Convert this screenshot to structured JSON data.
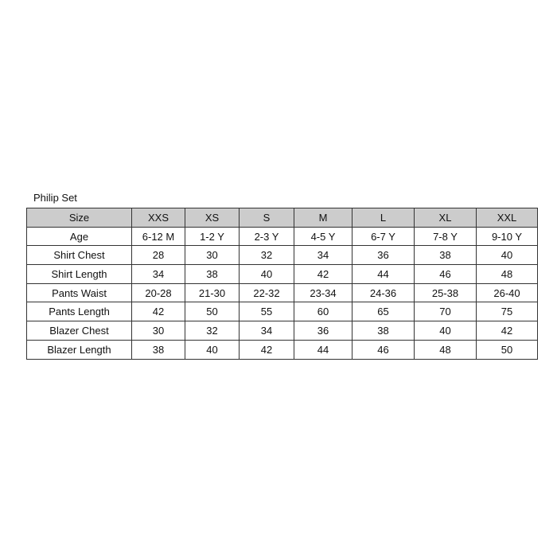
{
  "title": "Philip Set",
  "header": [
    "Size",
    "XXS",
    "XS",
    "S",
    "M",
    "L",
    "XL",
    "XXL"
  ],
  "rows": [
    [
      "Age",
      "6-12 M",
      "1-2 Y",
      "2-3 Y",
      "4-5 Y",
      "6-7 Y",
      "7-8 Y",
      "9-10 Y"
    ],
    [
      "Shirt Chest",
      "28",
      "30",
      "32",
      "34",
      "36",
      "38",
      "40"
    ],
    [
      "Shirt Length",
      "34",
      "38",
      "40",
      "42",
      "44",
      "46",
      "48"
    ],
    [
      "Pants Waist",
      "20-28",
      "21-30",
      "22-32",
      "23-34",
      "24-36",
      "25-38",
      "26-40"
    ],
    [
      "Pants Length",
      "42",
      "50",
      "55",
      "60",
      "65",
      "70",
      "75"
    ],
    [
      "Blazer Chest",
      "30",
      "32",
      "34",
      "36",
      "38",
      "40",
      "42"
    ],
    [
      "Blazer Length",
      "38",
      "40",
      "42",
      "44",
      "46",
      "48",
      "50"
    ]
  ],
  "colors": {
    "header_bg": "#cccccc",
    "border": "#333333"
  }
}
